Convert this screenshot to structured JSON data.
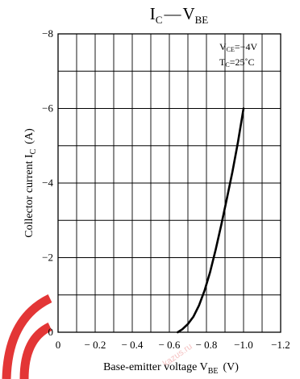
{
  "chart_data": {
    "type": "line",
    "title": {
      "main1": "I",
      "sub1": "C",
      "dash": "—",
      "main2": "V",
      "sub2": "BE"
    },
    "xlabel": {
      "text": "Base-emitter voltage  V",
      "sub": "BE",
      "unit": "(V)"
    },
    "ylabel": {
      "text": "Collector current  I",
      "sub": "C",
      "unit": "(A)"
    },
    "xlim": [
      0,
      -1.2
    ],
    "ylim": [
      0,
      -8
    ],
    "x_ticks": [
      0,
      -0.2,
      -0.4,
      -0.6,
      -0.8,
      -1.0,
      -1.2
    ],
    "x_tick_labels": [
      "0",
      "− 0.2",
      "− 0.4",
      "− 0.6",
      "− 0.8",
      "−1.0",
      "−1.2"
    ],
    "y_ticks": [
      0,
      -2,
      -4,
      -6,
      -8
    ],
    "y_tick_labels": [
      "0",
      "−2",
      "−4",
      "−6",
      "−8"
    ],
    "x_grid_step": -0.1,
    "y_grid_step": -1,
    "grid": true,
    "conditions": [
      {
        "prefix": "V",
        "sub": "CE",
        "suffix": "=−4V"
      },
      {
        "prefix": "T",
        "sub": "C",
        "suffix": "=25˚C"
      }
    ],
    "series": [
      {
        "x": [
          -0.645,
          -0.67,
          -0.7,
          -0.73,
          -0.76,
          -0.79,
          -0.82,
          -0.85,
          -0.88,
          -0.91,
          -0.94,
          -0.97,
          -1.0
        ],
        "y": [
          0,
          -0.08,
          -0.22,
          -0.42,
          -0.72,
          -1.12,
          -1.62,
          -2.22,
          -2.88,
          -3.58,
          -4.3,
          -5.1,
          -6.0
        ]
      }
    ],
    "watermark": "kazus.ru"
  }
}
